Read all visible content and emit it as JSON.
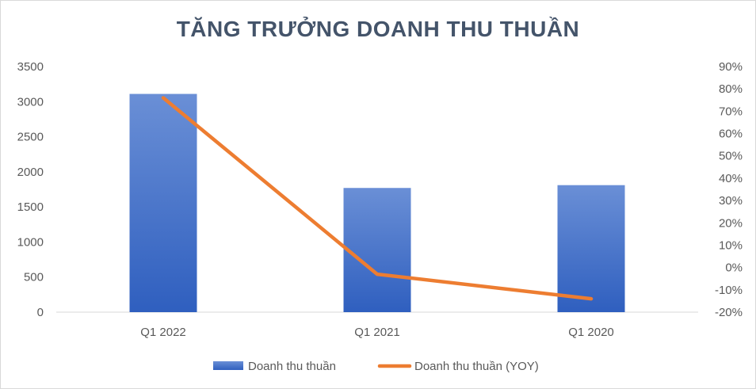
{
  "chart_data": {
    "type": "bar",
    "title": "TĂNG TRƯỞNG DOANH THU THUẦN",
    "categories": [
      "Q1 2022",
      "Q1 2021",
      "Q1 2020"
    ],
    "series": [
      {
        "name": "Doanh thu thuần",
        "type": "bar",
        "axis": "left",
        "values": [
          3110,
          1770,
          1810
        ],
        "color": "#4472c4"
      },
      {
        "name": "Doanh thu thuần (YOY)",
        "type": "line",
        "axis": "right",
        "values": [
          0.76,
          -0.03,
          -0.14
        ],
        "color": "#ed7d31"
      }
    ],
    "y_left": {
      "min": 0,
      "max": 3500,
      "ticks": [
        "0",
        "500",
        "1000",
        "1500",
        "2000",
        "2500",
        "3000",
        "3500"
      ]
    },
    "y_right": {
      "min": -0.2,
      "max": 0.9,
      "ticks": [
        "-20%",
        "-10%",
        "0%",
        "10%",
        "20%",
        "30%",
        "40%",
        "50%",
        "60%",
        "70%",
        "80%",
        "90%"
      ]
    },
    "grid": false,
    "legend_position": "bottom"
  }
}
